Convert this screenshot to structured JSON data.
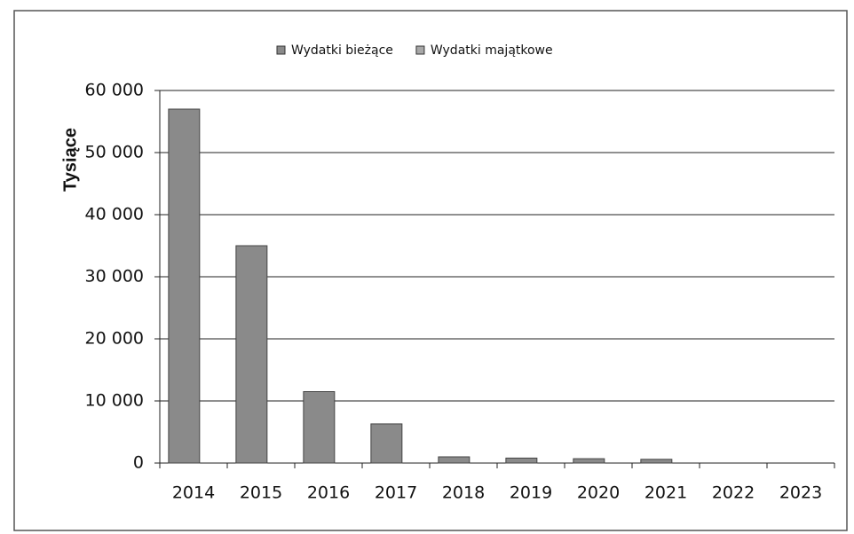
{
  "chart_data": {
    "type": "bar",
    "y_label": "Tysiące",
    "categories": [
      "2014",
      "2015",
      "2016",
      "2017",
      "2018",
      "2019",
      "2020",
      "2021",
      "2022",
      "2023"
    ],
    "series": [
      {
        "name": "Wydatki bieżące",
        "color": "#8a8a8a",
        "values": [
          57000,
          35000,
          11500,
          6300,
          1000,
          800,
          700,
          600,
          0,
          0
        ]
      },
      {
        "name": "Wydatki majątkowe",
        "color": "#a8a8a8",
        "values": [
          0,
          0,
          0,
          0,
          0,
          0,
          0,
          0,
          0,
          0
        ]
      }
    ],
    "ylim": [
      0,
      60000
    ],
    "yticks": [
      {
        "value": 0,
        "label": "0"
      },
      {
        "value": 10000,
        "label": "10 000"
      },
      {
        "value": 20000,
        "label": "20 000"
      },
      {
        "value": 30000,
        "label": "30 000"
      },
      {
        "value": 40000,
        "label": "40 000"
      },
      {
        "value": 50000,
        "label": "50 000"
      },
      {
        "value": 60000,
        "label": "60 000"
      }
    ],
    "grid": true,
    "legend": "top"
  }
}
